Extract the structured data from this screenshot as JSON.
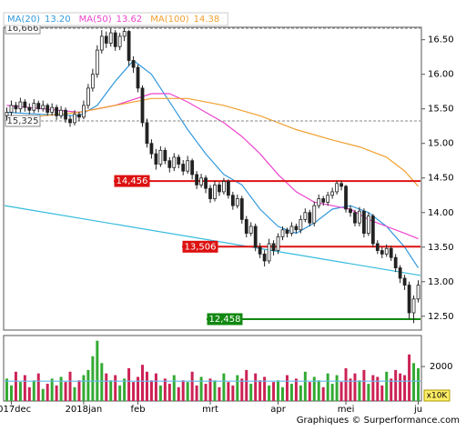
{
  "chart_data": {
    "type": "candlestick",
    "xlim": [
      -0.5,
      91.5
    ],
    "xticks": [
      {
        "value": 1,
        "label": "2017dec"
      },
      {
        "value": 17,
        "label": "2018jan"
      },
      {
        "value": 29,
        "label": "feb"
      },
      {
        "value": 45,
        "label": "mrt"
      },
      {
        "value": 60,
        "label": "apr"
      },
      {
        "value": 75,
        "label": "mei"
      },
      {
        "value": 91,
        "label": "ju"
      }
    ],
    "ylim": [
      12.3,
      16.68
    ],
    "yticks": [
      {
        "value": 12.5,
        "label": "12.50"
      },
      {
        "value": 13,
        "label": "13.00"
      },
      {
        "value": 13.5,
        "label": "13.50"
      },
      {
        "value": 14,
        "label": "14.00"
      },
      {
        "value": 14.5,
        "label": "14.50"
      },
      {
        "value": 15,
        "label": "15.00"
      },
      {
        "value": 15.5,
        "label": "15.50"
      },
      {
        "value": 16,
        "label": "16.00"
      },
      {
        "value": 16.5,
        "label": "16.50"
      }
    ],
    "candles": [
      [
        15.4,
        15.52,
        15.33,
        15.45
      ],
      [
        15.45,
        15.62,
        15.4,
        15.55
      ],
      [
        15.55,
        15.6,
        15.44,
        15.5
      ],
      [
        15.5,
        15.66,
        15.45,
        15.6
      ],
      [
        15.6,
        15.64,
        15.46,
        15.52
      ],
      [
        15.52,
        15.58,
        15.42,
        15.48
      ],
      [
        15.48,
        15.64,
        15.44,
        15.58
      ],
      [
        15.58,
        15.62,
        15.45,
        15.5
      ],
      [
        15.5,
        15.62,
        15.46,
        15.55
      ],
      [
        15.55,
        15.58,
        15.4,
        15.45
      ],
      [
        15.45,
        15.58,
        15.4,
        15.52
      ],
      [
        15.52,
        15.56,
        15.34,
        15.4
      ],
      [
        15.4,
        15.54,
        15.36,
        15.48
      ],
      [
        15.48,
        15.52,
        15.3,
        15.35
      ],
      [
        15.35,
        15.4,
        15.24,
        15.3
      ],
      [
        15.3,
        15.48,
        15.26,
        15.42
      ],
      [
        15.42,
        15.46,
        15.32,
        15.38
      ],
      [
        15.38,
        15.62,
        15.35,
        15.55
      ],
      [
        15.55,
        15.86,
        15.5,
        15.8
      ],
      [
        15.8,
        16.08,
        15.75,
        16.0
      ],
      [
        16.0,
        16.42,
        15.95,
        16.35
      ],
      [
        16.35,
        16.64,
        16.3,
        16.55
      ],
      [
        16.55,
        16.62,
        16.38,
        16.45
      ],
      [
        16.45,
        16.66,
        16.4,
        16.6
      ],
      [
        16.6,
        16.64,
        16.34,
        16.4
      ],
      [
        16.4,
        16.6,
        16.35,
        16.55
      ],
      [
        16.55,
        16.67,
        16.48,
        16.62
      ],
      [
        16.62,
        16.64,
        16.12,
        16.2
      ],
      [
        16.2,
        16.26,
        16.02,
        16.1
      ],
      [
        16.1,
        16.14,
        15.74,
        15.8
      ],
      [
        15.8,
        15.84,
        15.24,
        15.3
      ],
      [
        15.3,
        15.36,
        14.94,
        15.0
      ],
      [
        15.0,
        15.06,
        14.78,
        14.85
      ],
      [
        14.85,
        14.92,
        14.62,
        14.7
      ],
      [
        14.7,
        14.96,
        14.66,
        14.9
      ],
      [
        14.9,
        14.94,
        14.7,
        14.75
      ],
      [
        14.75,
        14.8,
        14.58,
        14.65
      ],
      [
        14.65,
        14.86,
        14.6,
        14.8
      ],
      [
        14.8,
        14.84,
        14.64,
        14.7
      ],
      [
        14.7,
        14.76,
        14.54,
        14.6
      ],
      [
        14.6,
        14.82,
        14.56,
        14.75
      ],
      [
        14.75,
        14.78,
        14.48,
        14.55
      ],
      [
        14.55,
        14.6,
        14.34,
        14.4
      ],
      [
        14.4,
        14.56,
        14.36,
        14.5
      ],
      [
        14.5,
        14.54,
        14.28,
        14.35
      ],
      [
        14.35,
        14.4,
        14.14,
        14.2
      ],
      [
        14.2,
        14.46,
        14.16,
        14.4
      ],
      [
        14.4,
        14.44,
        14.24,
        14.3
      ],
      [
        14.3,
        14.5,
        14.26,
        14.45
      ],
      [
        14.45,
        14.48,
        14.2,
        14.25
      ],
      [
        14.25,
        14.3,
        14.04,
        14.1
      ],
      [
        14.1,
        14.26,
        14.06,
        14.2
      ],
      [
        14.2,
        14.24,
        13.84,
        13.9
      ],
      [
        13.9,
        13.95,
        13.64,
        13.7
      ],
      [
        13.7,
        13.86,
        13.66,
        13.8
      ],
      [
        13.8,
        13.84,
        13.44,
        13.5
      ],
      [
        13.5,
        13.56,
        13.34,
        13.4
      ],
      [
        13.4,
        13.46,
        13.22,
        13.3
      ],
      [
        13.3,
        13.62,
        13.26,
        13.55
      ],
      [
        13.55,
        13.6,
        13.38,
        13.45
      ],
      [
        13.45,
        13.7,
        13.4,
        13.65
      ],
      [
        13.65,
        13.8,
        13.6,
        13.75
      ],
      [
        13.75,
        13.78,
        13.64,
        13.7
      ],
      [
        13.7,
        13.86,
        13.66,
        13.8
      ],
      [
        13.8,
        13.84,
        13.7,
        13.75
      ],
      [
        13.75,
        13.96,
        13.7,
        13.9
      ],
      [
        13.9,
        14.06,
        13.86,
        14.0
      ],
      [
        14.0,
        14.04,
        13.8,
        13.85
      ],
      [
        13.85,
        14.16,
        13.8,
        14.1
      ],
      [
        14.1,
        14.26,
        14.06,
        14.2
      ],
      [
        14.2,
        14.24,
        14.1,
        14.15
      ],
      [
        14.15,
        14.3,
        14.1,
        14.25
      ],
      [
        14.25,
        14.36,
        14.2,
        14.3
      ],
      [
        14.3,
        14.46,
        14.26,
        14.42
      ],
      [
        14.42,
        14.46,
        14.32,
        14.38
      ],
      [
        14.38,
        14.4,
        14.0,
        14.05
      ],
      [
        14.05,
        14.1,
        13.94,
        14.0
      ],
      [
        14.0,
        14.04,
        13.8,
        13.85
      ],
      [
        13.85,
        14.08,
        13.8,
        14.02
      ],
      [
        14.02,
        14.06,
        13.64,
        13.7
      ],
      [
        13.7,
        14.0,
        13.66,
        13.95
      ],
      [
        13.95,
        13.98,
        13.5,
        13.55
      ],
      [
        13.55,
        13.6,
        13.4,
        13.45
      ],
      [
        13.45,
        13.5,
        13.34,
        13.4
      ],
      [
        13.4,
        13.54,
        13.36,
        13.48
      ],
      [
        13.48,
        13.52,
        13.3,
        13.35
      ],
      [
        13.35,
        13.4,
        13.14,
        13.2
      ],
      [
        13.2,
        13.24,
        12.98,
        13.05
      ],
      [
        13.05,
        13.1,
        12.88,
        12.95
      ],
      [
        12.95,
        13.0,
        12.46,
        12.55
      ],
      [
        12.55,
        12.8,
        12.4,
        12.75
      ],
      [
        12.75,
        13.02,
        12.7,
        12.95
      ]
    ],
    "series": [
      {
        "name": "MA(20)",
        "color": "#3399dd",
        "last": {
          "value": 13.2,
          "label": "13.20"
        },
        "x": [
          0,
          8,
          16,
          20,
          24,
          28,
          32,
          36,
          40,
          44,
          48,
          52,
          56,
          60,
          64,
          68,
          72,
          76,
          80,
          84,
          88,
          91
        ],
        "values": [
          15.45,
          15.42,
          15.4,
          15.55,
          15.9,
          16.2,
          16.0,
          15.6,
          15.2,
          14.85,
          14.55,
          14.4,
          14.05,
          13.8,
          13.7,
          13.85,
          14.05,
          14.1,
          14.0,
          13.8,
          13.5,
          13.2
        ]
      },
      {
        "name": "MA(50)",
        "color": "#ee44cc",
        "last": {
          "value": 13.62,
          "label": "13.62"
        },
        "x": [
          0,
          8,
          16,
          24,
          32,
          36,
          40,
          44,
          48,
          52,
          56,
          60,
          64,
          68,
          72,
          76,
          80,
          84,
          88,
          91
        ],
        "values": [
          15.55,
          15.5,
          15.45,
          15.55,
          15.72,
          15.72,
          15.6,
          15.45,
          15.3,
          15.1,
          14.85,
          14.55,
          14.3,
          14.15,
          14.1,
          14.05,
          13.9,
          13.8,
          13.7,
          13.62
        ]
      },
      {
        "name": "MA(100)",
        "color": "#f0a030",
        "last": {
          "value": 14.38,
          "label": "14.38"
        },
        "x": [
          0,
          8,
          16,
          24,
          32,
          40,
          48,
          56,
          64,
          72,
          78,
          84,
          88,
          91
        ],
        "values": [
          15.35,
          15.4,
          15.45,
          15.55,
          15.65,
          15.65,
          15.55,
          15.4,
          15.2,
          15.05,
          14.95,
          14.8,
          14.6,
          14.38
        ]
      }
    ],
    "trendline": {
      "color": "#33bbdd",
      "x": [
        -0.5,
        91.5
      ],
      "values": [
        14.1,
        13.09
      ]
    },
    "levels": [
      {
        "value": 16.666,
        "label": "16,666",
        "color": "#888888",
        "style": "dashed"
      },
      {
        "value": 15.325,
        "label": "15,325",
        "color": "#888888",
        "style": "dashed"
      },
      {
        "value": 14.456,
        "label": "14,456",
        "color": "#dd1111",
        "style": "solid"
      },
      {
        "value": 13.506,
        "label": "13,506",
        "color": "#dd1111",
        "style": "solid"
      },
      {
        "value": 12.458,
        "label": "12,458",
        "color": "#118811",
        "style": "solid"
      }
    ],
    "volume": {
      "unit": "x10K",
      "ylim": [
        0,
        3800
      ],
      "yticks": [
        2000
      ],
      "average": 1150,
      "up_color": "#33aa33",
      "down_color": "#cc2255",
      "values": [
        1300,
        900,
        1700,
        1100,
        1500,
        800,
        1200,
        1600,
        700,
        1000,
        1300,
        900,
        1400,
        1100,
        1700,
        800,
        1200,
        1500,
        1800,
        2600,
        3500,
        2200,
        1600,
        1200,
        1500,
        900,
        1300,
        1900,
        1100,
        1400,
        2100,
        1700,
        1200,
        1600,
        900,
        1300,
        1000,
        1500,
        800,
        1200,
        1100,
        1700,
        900,
        1400,
        1000,
        1300,
        1200,
        800,
        1600,
        1100,
        900,
        1500,
        1300,
        1800,
        1000,
        1600,
        1200,
        1400,
        900,
        1100,
        1200,
        800,
        1500,
        1000,
        1300,
        900,
        1700,
        1100,
        1400,
        1200,
        800,
        1600,
        1000,
        1500,
        1100,
        1900,
        1300,
        1600,
        1200,
        1800,
        1000,
        1500,
        1400,
        900,
        1700,
        1300,
        1800,
        1600,
        1500,
        2700,
        2200,
        1900
      ]
    },
    "credit": "Graphiques © Surperformance.com"
  }
}
